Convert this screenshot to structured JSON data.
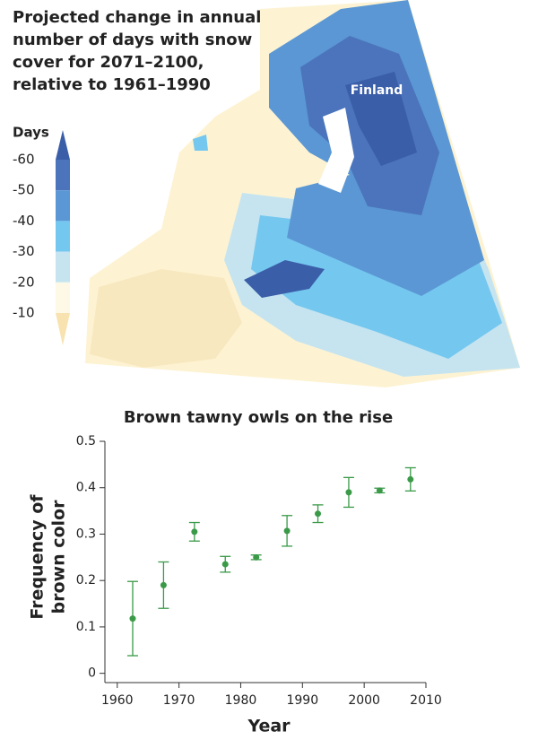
{
  "map": {
    "title_lines": [
      "Projected change in annual",
      "number of days with snow",
      "cover for 2071–2100,",
      "relative to 1961–1990"
    ],
    "place_label": "Finland",
    "legend": {
      "title": "Days",
      "ticks": [
        -60,
        -50,
        -40,
        -30,
        -20,
        -10
      ],
      "colors": [
        "#3a5ea8",
        "#4b74bc",
        "#5b97d4",
        "#74c7ef",
        "#c5e4f0",
        "#fdf9e6",
        "#f8e3b0"
      ]
    }
  },
  "chart_data": {
    "type": "scatter",
    "title": "Brown tawny owls on the rise",
    "x_label": "Year",
    "y_label": [
      "Frequency of",
      "brown color"
    ],
    "x": [
      1962.5,
      1967.5,
      1972.5,
      1977.5,
      1982.5,
      1987.5,
      1992.5,
      1997.5,
      2002.5,
      2007.5
    ],
    "values": [
      0.118,
      0.19,
      0.305,
      0.235,
      0.25,
      0.307,
      0.344,
      0.39,
      0.394,
      0.418
    ],
    "errors": [
      0.08,
      0.05,
      0.02,
      0.017,
      0.005,
      0.033,
      0.019,
      0.032,
      0.005,
      0.025
    ],
    "color": "#3a9a48",
    "xlim": [
      1958,
      2010
    ],
    "ylim": [
      -0.02,
      0.5
    ],
    "xticks": [
      1960,
      1970,
      1980,
      1990,
      2000,
      2010
    ],
    "yticks": [
      0,
      0.1,
      0.2,
      0.3,
      0.4,
      0.5
    ]
  }
}
